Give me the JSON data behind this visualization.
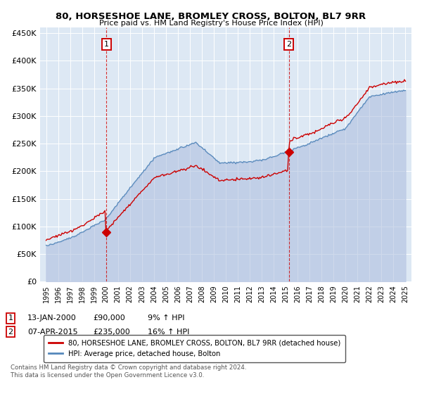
{
  "title": "80, HORSESHOE LANE, BROMLEY CROSS, BOLTON, BL7 9RR",
  "subtitle": "Price paid vs. HM Land Registry's House Price Index (HPI)",
  "legend_line1": "80, HORSESHOE LANE, BROMLEY CROSS, BOLTON, BL7 9RR (detached house)",
  "legend_line2": "HPI: Average price, detached house, Bolton",
  "annotation1_date": "13-JAN-2000",
  "annotation1_price": "£90,000",
  "annotation1_hpi": "9% ↑ HPI",
  "annotation1_year": 2000.04,
  "annotation1_value": 90000,
  "annotation2_date": "07-APR-2015",
  "annotation2_price": "£235,000",
  "annotation2_hpi": "16% ↑ HPI",
  "annotation2_year": 2015.27,
  "annotation2_value": 235000,
  "footer1": "Contains HM Land Registry data © Crown copyright and database right 2024.",
  "footer2": "This data is licensed under the Open Government Licence v3.0.",
  "red_color": "#cc0000",
  "blue_color": "#5588bb",
  "blue_fill_color": "#aabbdd",
  "plot_bg_color": "#dde8f4",
  "ylim": [
    0,
    460000
  ],
  "yticks": [
    0,
    50000,
    100000,
    150000,
    200000,
    250000,
    300000,
    350000,
    400000,
    450000
  ],
  "xlim_start": 1994.5,
  "xlim_end": 2025.5,
  "xticks": [
    1995,
    1996,
    1997,
    1998,
    1999,
    2000,
    2001,
    2002,
    2003,
    2004,
    2005,
    2006,
    2007,
    2008,
    2009,
    2010,
    2011,
    2012,
    2013,
    2014,
    2015,
    2016,
    2017,
    2018,
    2019,
    2020,
    2021,
    2022,
    2023,
    2024,
    2025
  ]
}
